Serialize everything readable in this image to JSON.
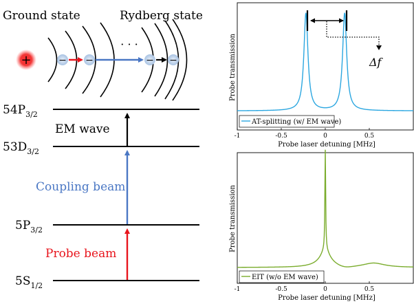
{
  "top_left": {
    "ground_state_label": "Ground state",
    "rydberg_state_label": "Rydberg state",
    "ellipsis": "· · ·",
    "plus_sign": "+",
    "minus_sign": "−"
  },
  "levels": [
    {
      "main": "54P",
      "sub": "3/2"
    },
    {
      "main": "53D",
      "sub": "3/2"
    },
    {
      "main": "5P",
      "sub": "3/2"
    },
    {
      "main": "5S",
      "sub": "1/2"
    }
  ],
  "beams": {
    "em_wave": "EM wave",
    "coupling": "Coupling beam",
    "probe": "Probe beam"
  },
  "colors": {
    "red": "#e8141c",
    "blue": "#4a77c4",
    "at_line": "#2aa6e0",
    "eit_line": "#7aac2c",
    "nucleus": "#e8141c",
    "electron": "#b8cfe8"
  },
  "chart_data": [
    {
      "type": "line",
      "title": "",
      "xlabel": "Probe laser detuning [MHz]",
      "ylabel": "Probe transmission",
      "xlim": [
        -1,
        1
      ],
      "xticks": [
        "-1",
        "-0.5",
        "0",
        "0.5"
      ],
      "series": [
        {
          "name": "AT-splitting (w/ EM wave)"
        }
      ],
      "peaks": [
        -0.22,
        0.22
      ],
      "annotation": "Δf"
    },
    {
      "type": "line",
      "title": "",
      "xlabel": "Probe laser detuning [MHz]",
      "ylabel": "Probe transmission",
      "xlim": [
        -1,
        1
      ],
      "xticks": [
        "-1",
        "-0.5",
        "0",
        "0.5"
      ],
      "series": [
        {
          "name": "EIT (w/o EM wave)"
        }
      ],
      "peaks": [
        0.0
      ]
    }
  ]
}
